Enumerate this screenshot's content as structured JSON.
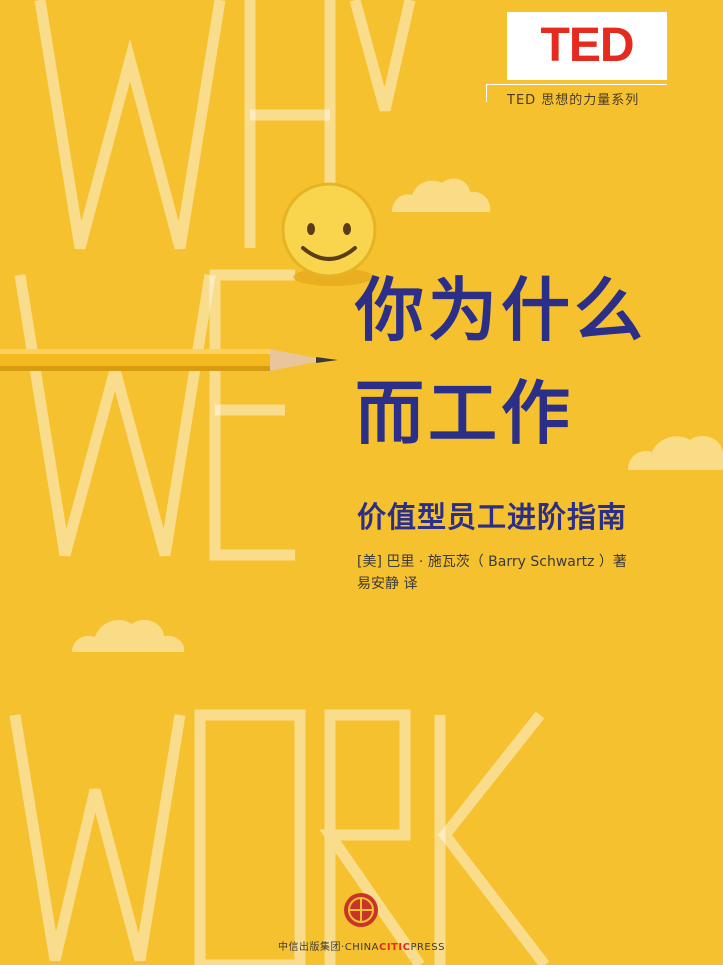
{
  "cover": {
    "background_color": "#f6c12e",
    "title_color": "#2c2f87",
    "brand_red": "#e62b1e",
    "background_words": [
      "WHY",
      "WE",
      "WORK"
    ],
    "brand_logo": "TED",
    "series": "TED 思想的力量系列",
    "title_line_1": "你为什么",
    "title_line_2": "而工作",
    "subtitle": "价值型员工进阶指南",
    "author": "[美] 巴里 · 施瓦茨（ Barry Schwartz ）著",
    "translator": "易安静 译",
    "publisher_cn": "中信出版集团",
    "publisher_sep": "·",
    "publisher_en_1": "CHINA",
    "publisher_en_2": "CITIC",
    "publisher_en_3": "PRESS",
    "icons": {
      "smiley": "smiley-face-icon",
      "pencil": "pencil-icon",
      "cloud": "cloud-icon",
      "publisher_logo": "citic-logo-icon"
    }
  }
}
